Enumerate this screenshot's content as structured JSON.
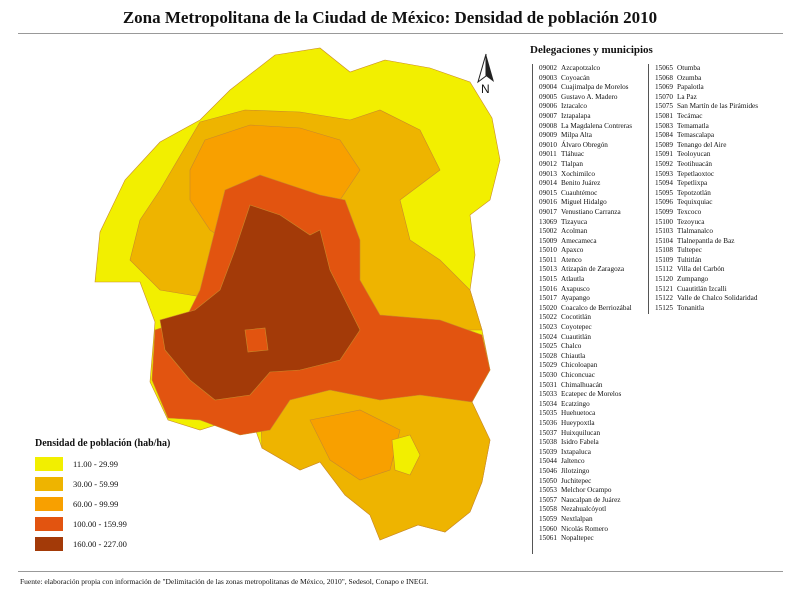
{
  "title": "Zona Metropolitana de la Ciudad de México: Densidad de población 2010",
  "north_label": "N",
  "panel_title": "Delegaciones y municipios",
  "municipalities_col1": [
    {
      "code": "09002",
      "name": "Azcapotzalco"
    },
    {
      "code": "09003",
      "name": "Coyoacán"
    },
    {
      "code": "09004",
      "name": "Cuajimalpa de Morelos"
    },
    {
      "code": "09005",
      "name": "Gustavo A. Madero"
    },
    {
      "code": "09006",
      "name": "Iztacalco"
    },
    {
      "code": "09007",
      "name": "Iztapalapa"
    },
    {
      "code": "09008",
      "name": "La Magdalena Contreras"
    },
    {
      "code": "09009",
      "name": "Milpa Alta"
    },
    {
      "code": "09010",
      "name": "Álvaro Obregón"
    },
    {
      "code": "09011",
      "name": "Tláhuac"
    },
    {
      "code": "09012",
      "name": "Tlalpan"
    },
    {
      "code": "09013",
      "name": "Xochimilco"
    },
    {
      "code": "09014",
      "name": "Benito Juárez"
    },
    {
      "code": "09015",
      "name": "Cuauhtémoc"
    },
    {
      "code": "09016",
      "name": "Miguel Hidalgo"
    },
    {
      "code": "09017",
      "name": "Venustiano Carranza"
    },
    {
      "code": "13069",
      "name": "Tizayuca"
    },
    {
      "code": "15002",
      "name": "Acolman"
    },
    {
      "code": "15009",
      "name": "Amecameca"
    },
    {
      "code": "15010",
      "name": "Apaxco"
    },
    {
      "code": "15011",
      "name": "Atenco"
    },
    {
      "code": "15013",
      "name": "Atizapán de Zaragoza"
    },
    {
      "code": "15015",
      "name": "Atlautla"
    },
    {
      "code": "15016",
      "name": "Axapusco"
    },
    {
      "code": "15017",
      "name": "Ayapango"
    },
    {
      "code": "15020",
      "name": "Coacalco de Berriozábal"
    },
    {
      "code": "15022",
      "name": "Cocotitlán"
    },
    {
      "code": "15023",
      "name": "Coyotepec"
    },
    {
      "code": "15024",
      "name": "Cuautitlán"
    },
    {
      "code": "15025",
      "name": "Chalco"
    },
    {
      "code": "15028",
      "name": "Chiautla"
    },
    {
      "code": "15029",
      "name": "Chicoloapan"
    },
    {
      "code": "15030",
      "name": "Chiconcuac"
    },
    {
      "code": "15031",
      "name": "Chimalhuacán"
    },
    {
      "code": "15033",
      "name": "Ecatepec de Morelos"
    },
    {
      "code": "15034",
      "name": "Ecatzingo"
    },
    {
      "code": "15035",
      "name": "Huehuetoca"
    },
    {
      "code": "15036",
      "name": "Hueypoxtla"
    },
    {
      "code": "15037",
      "name": "Huixquilucan"
    },
    {
      "code": "15038",
      "name": "Isidro Fabela"
    },
    {
      "code": "15039",
      "name": "Ixtapaluca"
    },
    {
      "code": "15044",
      "name": "Jaltenco"
    },
    {
      "code": "15046",
      "name": "Jilotzingo"
    },
    {
      "code": "15050",
      "name": "Juchitepec"
    },
    {
      "code": "15053",
      "name": "Melchor Ocampo"
    },
    {
      "code": "15057",
      "name": "Naucalpan de Juárez"
    },
    {
      "code": "15058",
      "name": "Nezahualcóyotl"
    },
    {
      "code": "15059",
      "name": "Nextlalpan"
    },
    {
      "code": "15060",
      "name": "Nicolás Romero"
    },
    {
      "code": "15061",
      "name": "Nopaltepec"
    }
  ],
  "municipalities_col2": [
    {
      "code": "15065",
      "name": "Otumba"
    },
    {
      "code": "15068",
      "name": "Ozumba"
    },
    {
      "code": "15069",
      "name": "Papalotla"
    },
    {
      "code": "15070",
      "name": "La Paz"
    },
    {
      "code": "15075",
      "name": "San Martín de las Pirámides"
    },
    {
      "code": "15081",
      "name": "Tecámac"
    },
    {
      "code": "15083",
      "name": "Temamatla"
    },
    {
      "code": "15084",
      "name": "Temascalapa"
    },
    {
      "code": "15089",
      "name": "Tenango del Aire"
    },
    {
      "code": "15091",
      "name": "Teoloyucan"
    },
    {
      "code": "15092",
      "name": "Teotihuacán"
    },
    {
      "code": "15093",
      "name": "Tepetlaoxtoc"
    },
    {
      "code": "15094",
      "name": "Tepetlixpa"
    },
    {
      "code": "15095",
      "name": "Tepotzotlán"
    },
    {
      "code": "15096",
      "name": "Tequixquiac"
    },
    {
      "code": "15099",
      "name": "Texcoco"
    },
    {
      "code": "15100",
      "name": "Tezoyuca"
    },
    {
      "code": "15103",
      "name": "Tlalmanalco"
    },
    {
      "code": "15104",
      "name": "Tlalnepantla de Baz"
    },
    {
      "code": "15108",
      "name": "Tultepec"
    },
    {
      "code": "15109",
      "name": "Tultitlán"
    },
    {
      "code": "15112",
      "name": "Villa del Carbón"
    },
    {
      "code": "15120",
      "name": "Zumpango"
    },
    {
      "code": "15121",
      "name": "Cuautitlán Izcalli"
    },
    {
      "code": "15122",
      "name": "Valle de Chalco Solidaridad"
    },
    {
      "code": "15125",
      "name": "Tonanitla"
    }
  ],
  "legend": {
    "title": "Densidad de población (hab/ha)",
    "classes": [
      {
        "label": "11.00 - 29.99",
        "color": "#f2ef00"
      },
      {
        "label": "30.00 - 59.99",
        "color": "#eeb400"
      },
      {
        "label": "60.00 - 99.99",
        "color": "#f8a000"
      },
      {
        "label": "100.00 - 159.99",
        "color": "#e25410"
      },
      {
        "label": "160.00 - 227.00",
        "color": "#a33a08"
      }
    ]
  },
  "footer": "Fuente: elaboración propia con información de \"Delimitación de las zonas metropolitanas de México, 2010\", Sedesol, Conapo e INEGI."
}
